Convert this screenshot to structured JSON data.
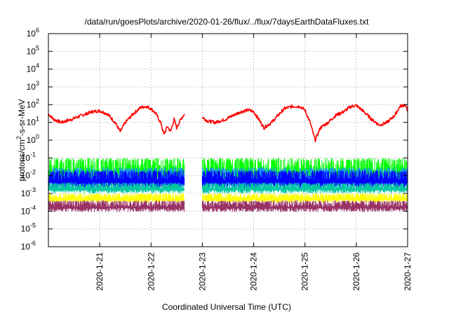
{
  "chart_data": {
    "type": "line",
    "title": "/data/run/goesPlots/archive/2020-01-26/flux/../flux/7daysEarthDataFluxes.txt",
    "xlabel": "Coordinated Universal Time (UTC)",
    "ylabel_main": "protons/cm",
    "ylabel_sup": "2",
    "ylabel_rest": "-s-sr-MeV",
    "yscale": "log",
    "ylim_exp": [
      -6,
      6
    ],
    "xlim_days": [
      20.0,
      27.0
    ],
    "x_ticks": [
      {
        "day": 21,
        "label": "2020-1-21"
      },
      {
        "day": 22,
        "label": "2020-1-22"
      },
      {
        "day": 23,
        "label": "2020-1-23"
      },
      {
        "day": 24,
        "label": "2020-1-24"
      },
      {
        "day": 25,
        "label": "2020-1-25"
      },
      {
        "day": 26,
        "label": "2020-1-26"
      },
      {
        "day": 27,
        "label": "2020-1-27"
      }
    ],
    "y_ticks": [
      {
        "exp": -6,
        "base": "10",
        "sup": "-6"
      },
      {
        "exp": -5,
        "base": "10",
        "sup": "-5"
      },
      {
        "exp": -4,
        "base": "10",
        "sup": "-4"
      },
      {
        "exp": -3,
        "base": "10",
        "sup": "-3"
      },
      {
        "exp": -2,
        "base": "10",
        "sup": "-2"
      },
      {
        "exp": -1,
        "base": "10",
        "sup": "-1"
      },
      {
        "exp": 0,
        "base": "10",
        "sup": "0"
      },
      {
        "exp": 1,
        "base": "10",
        "sup": "1"
      },
      {
        "exp": 2,
        "base": "10",
        "sup": "2"
      },
      {
        "exp": 3,
        "base": "10",
        "sup": "3"
      },
      {
        "exp": 4,
        "base": "10",
        "sup": "4"
      },
      {
        "exp": 5,
        "base": "10",
        "sup": "5"
      },
      {
        "exp": 6,
        "base": "10",
        "sup": "6"
      }
    ],
    "grid": true,
    "data_gap_days": [
      22.65,
      23.0
    ],
    "series": [
      {
        "color": "#ff0000",
        "style": "line",
        "x": [
          20.0,
          20.1,
          20.25,
          20.45,
          20.65,
          20.85,
          21.0,
          21.15,
          21.3,
          21.4,
          21.5,
          21.65,
          21.8,
          21.9,
          22.0,
          22.1,
          22.2,
          22.25,
          22.32,
          22.38,
          22.45,
          22.5,
          22.58,
          22.65,
          23.0,
          23.1,
          23.25,
          23.45,
          23.6,
          23.75,
          23.9,
          24.0,
          24.1,
          24.2,
          24.35,
          24.5,
          24.6,
          24.75,
          24.9,
          25.0,
          25.1,
          25.15,
          25.2,
          25.3,
          25.45,
          25.6,
          25.75,
          25.9,
          26.0,
          26.15,
          26.3,
          26.45,
          26.6,
          26.75,
          26.85,
          26.95,
          27.0
        ],
        "y": [
          30,
          15,
          10,
          15,
          25,
          40,
          45,
          30,
          10,
          3,
          10,
          30,
          70,
          80,
          60,
          30,
          8,
          2,
          6,
          3,
          15,
          5,
          15,
          30,
          20,
          12,
          10,
          15,
          25,
          40,
          50,
          40,
          15,
          5,
          10,
          30,
          60,
          80,
          80,
          50,
          10,
          3,
          1,
          5,
          10,
          25,
          40,
          80,
          90,
          40,
          15,
          7,
          10,
          25,
          80,
          100,
          40
        ]
      },
      {
        "color": "#00ff00",
        "style": "band",
        "low": 0.003,
        "high": 0.1
      },
      {
        "color": "#1e90ff",
        "style": "band",
        "low": 0.0015,
        "high": 0.03
      },
      {
        "color": "#0000ff",
        "style": "band",
        "low": 0.002,
        "high": 0.02
      },
      {
        "color": "#00c8a0",
        "style": "band",
        "low": 0.001,
        "high": 0.004
      },
      {
        "color": "#ffff00",
        "style": "band",
        "low": 0.0003,
        "high": 0.001
      },
      {
        "color": "#993366",
        "style": "band",
        "low": 9e-05,
        "high": 0.0004
      }
    ]
  }
}
